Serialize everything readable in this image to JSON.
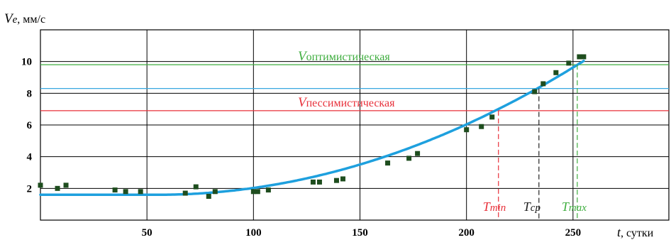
{
  "chart_data": {
    "type": "scatter",
    "title": "",
    "ylabel": {
      "symbol": "V",
      "sub": "e",
      "unit": ", мм/с"
    },
    "xlabel": {
      "symbol": "t",
      "unit": ", сутки"
    },
    "xlim": [
      0,
      295
    ],
    "ylim": [
      0,
      12
    ],
    "x_ticks": [
      50,
      100,
      150,
      200,
      250
    ],
    "y_ticks": [
      2,
      4,
      6,
      8,
      10
    ],
    "grid": true,
    "points": [
      [
        0,
        2.2
      ],
      [
        8,
        2.0
      ],
      [
        12,
        2.2
      ],
      [
        35,
        1.9
      ],
      [
        40,
        1.8
      ],
      [
        47,
        1.8
      ],
      [
        68,
        1.7
      ],
      [
        73,
        2.1
      ],
      [
        79,
        1.5
      ],
      [
        82,
        1.8
      ],
      [
        100,
        1.8
      ],
      [
        102,
        1.8
      ],
      [
        107,
        1.9
      ],
      [
        128,
        2.4
      ],
      [
        131,
        2.4
      ],
      [
        139,
        2.5
      ],
      [
        142,
        2.6
      ],
      [
        163,
        3.6
      ],
      [
        173,
        3.9
      ],
      [
        177,
        4.2
      ],
      [
        200,
        5.7
      ],
      [
        207,
        5.9
      ],
      [
        212,
        6.5
      ],
      [
        232,
        8.1
      ],
      [
        236,
        8.6
      ],
      [
        242,
        9.3
      ],
      [
        248,
        9.9
      ],
      [
        253,
        10.3
      ],
      [
        255,
        10.3
      ]
    ],
    "trend": {
      "baseline": 1.6,
      "start_x": 55,
      "coef": 0.000211,
      "power": 2,
      "end_x": 255
    },
    "reference_lines": [
      {
        "name_symbol": "V",
        "name_text": "оптимистическая",
        "value": 9.8,
        "color": "#3fae3f"
      },
      {
        "name_symbol": "",
        "name_text": "",
        "value": 8.3,
        "color": "#38a8e0"
      },
      {
        "name_symbol": "V",
        "name_text": "пессимистическая",
        "value": 6.9,
        "color": "#e8303a"
      }
    ],
    "time_markers": [
      {
        "symbol": "T",
        "sub": "min",
        "x": 215,
        "y_top": 6.9,
        "color": "#e8303a"
      },
      {
        "symbol": "T",
        "sub": "cp",
        "x": 234,
        "y_top": 8.3,
        "color": "#222222"
      },
      {
        "symbol": "T",
        "sub": "max",
        "x": 252,
        "y_top": 9.8,
        "color": "#3fae3f"
      }
    ],
    "colors": {
      "points": "#1e4d1e",
      "trend": "#1ea0de",
      "grid": "#000000"
    }
  }
}
